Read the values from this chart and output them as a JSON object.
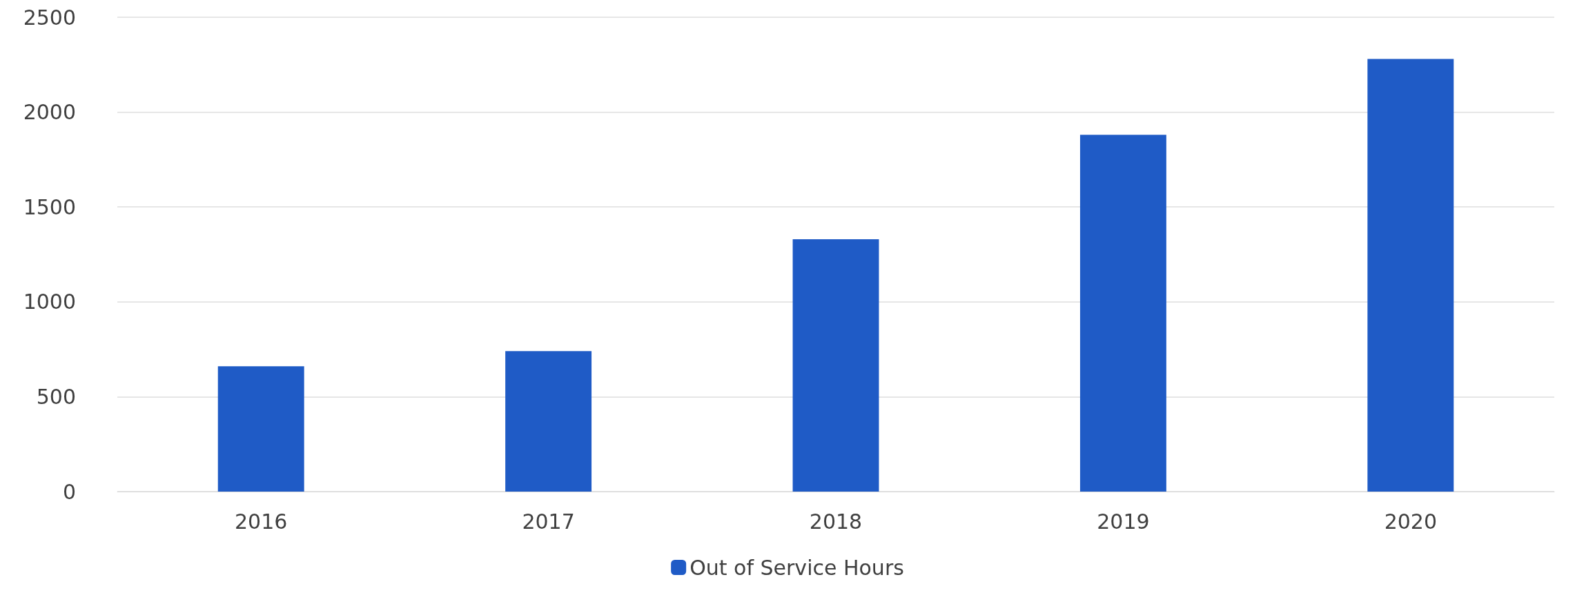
{
  "chart_data": {
    "type": "bar",
    "categories": [
      "2016",
      "2017",
      "2018",
      "2019",
      "2020"
    ],
    "series": [
      {
        "name": "Out of Service Hours",
        "color": "#1f5bc6",
        "values": [
          660,
          740,
          1330,
          1880,
          2280
        ]
      }
    ],
    "ylim": [
      0,
      2500
    ],
    "yticks": [
      0,
      500,
      1000,
      1500,
      2000,
      2500
    ],
    "grid": "y",
    "legend": "bottom"
  }
}
